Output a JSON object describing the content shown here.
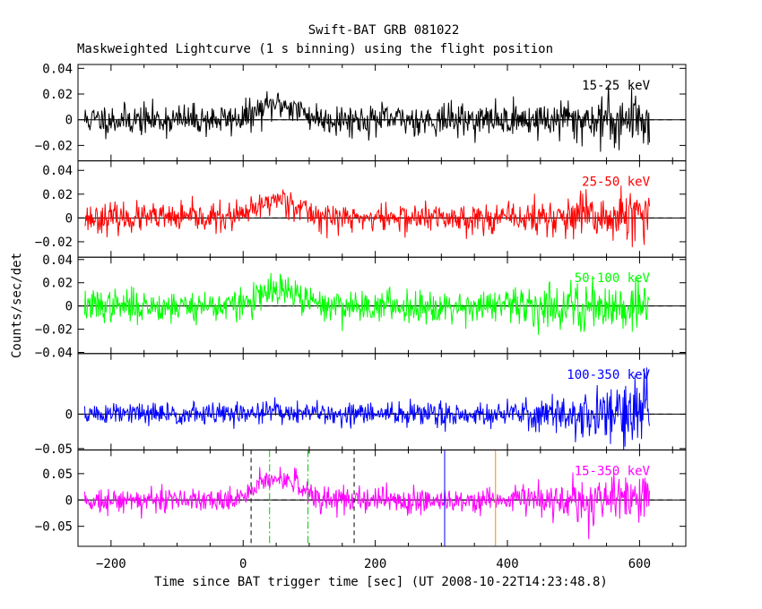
{
  "chart_data": {
    "type": "line",
    "title": "Swift-BAT GRB 081022",
    "subtitle": "Maskweighted Lightcurve (1 s binning) using the flight position",
    "xlabel": "Time since BAT trigger time [sec] (UT 2008-10-22T14:23:48.8)",
    "ylabel": "Counts/sec/det",
    "xlim": [
      -250,
      670
    ],
    "xticks": [
      -200,
      0,
      200,
      400,
      600
    ],
    "data_range": [
      -240,
      615
    ],
    "colors": {
      "frame": "#000000",
      "t90": "#000000",
      "t50": "#00cc00",
      "marker1": "#0000ff",
      "marker2": "#ff8800"
    },
    "vertical_markers": [
      {
        "name": "t90-start",
        "x": 12,
        "style": "dashed",
        "color": "#000000"
      },
      {
        "name": "t90-end",
        "x": 168,
        "style": "dashed",
        "color": "#000000"
      },
      {
        "name": "t50-start",
        "x": 40,
        "style": "dashdot",
        "color": "#00cc00"
      },
      {
        "name": "t50-end",
        "x": 98,
        "style": "dashdot",
        "color": "#00cc00"
      },
      {
        "name": "marker-1",
        "x": 305,
        "style": "solid",
        "color": "#0000ff"
      },
      {
        "name": "marker-2",
        "x": 382,
        "style": "solid",
        "color": "#ff8800"
      }
    ],
    "panels": [
      {
        "label": "15-25 keV",
        "color": "#000000",
        "ylim": [
          -0.032,
          0.043
        ],
        "ticks": [
          {
            "v": 0.04,
            "t": "0.04"
          },
          {
            "v": 0.02,
            "t": "0.02"
          },
          {
            "v": 0,
            "t": "0"
          },
          {
            "v": -0.02,
            "t": "−0.02"
          }
        ],
        "noise": 0.006,
        "peak": 0.012,
        "late_scale": 2.0,
        "seed": 11
      },
      {
        "label": "25-50 keV",
        "color": "#ff0000",
        "ylim": [
          -0.033,
          0.048
        ],
        "ticks": [
          {
            "v": 0.04,
            "t": "0.04"
          },
          {
            "v": 0.02,
            "t": "0.02"
          },
          {
            "v": 0,
            "t": "0"
          },
          {
            "v": -0.02,
            "t": "−0.02"
          }
        ],
        "noise": 0.006,
        "peak": 0.016,
        "late_scale": 2.2,
        "seed": 23
      },
      {
        "label": "50-100 keV",
        "color": "#00ff00",
        "ylim": [
          -0.041,
          0.042
        ],
        "ticks": [
          {
            "v": 0.04,
            "t": "0.04"
          },
          {
            "v": 0.02,
            "t": "0.02"
          },
          {
            "v": 0,
            "t": "0"
          },
          {
            "v": -0.02,
            "t": "−0.02"
          },
          {
            "v": -0.04,
            "t": "−0.04"
          }
        ],
        "noise": 0.007,
        "peak": 0.013,
        "late_scale": 2.0,
        "seed": 37
      },
      {
        "label": "100-350 keV",
        "color": "#0000ff",
        "ylim": [
          -0.052,
          0.088
        ],
        "ticks": [
          {
            "v": 0,
            "t": "0"
          },
          {
            "v": -0.05,
            "t": "−0.05"
          }
        ],
        "noise": 0.0085,
        "peak": 0.004,
        "late_scale": 3.2,
        "seed": 51
      },
      {
        "label": "15-350 keV",
        "color": "#ff00ff",
        "ylim": [
          -0.088,
          0.095
        ],
        "ticks": [
          {
            "v": 0.05,
            "t": "0.05"
          },
          {
            "v": 0,
            "t": "0"
          },
          {
            "v": -0.05,
            "t": "−0.05"
          }
        ],
        "noise": 0.012,
        "peak": 0.045,
        "late_scale": 2.4,
        "seed": 73
      }
    ]
  }
}
